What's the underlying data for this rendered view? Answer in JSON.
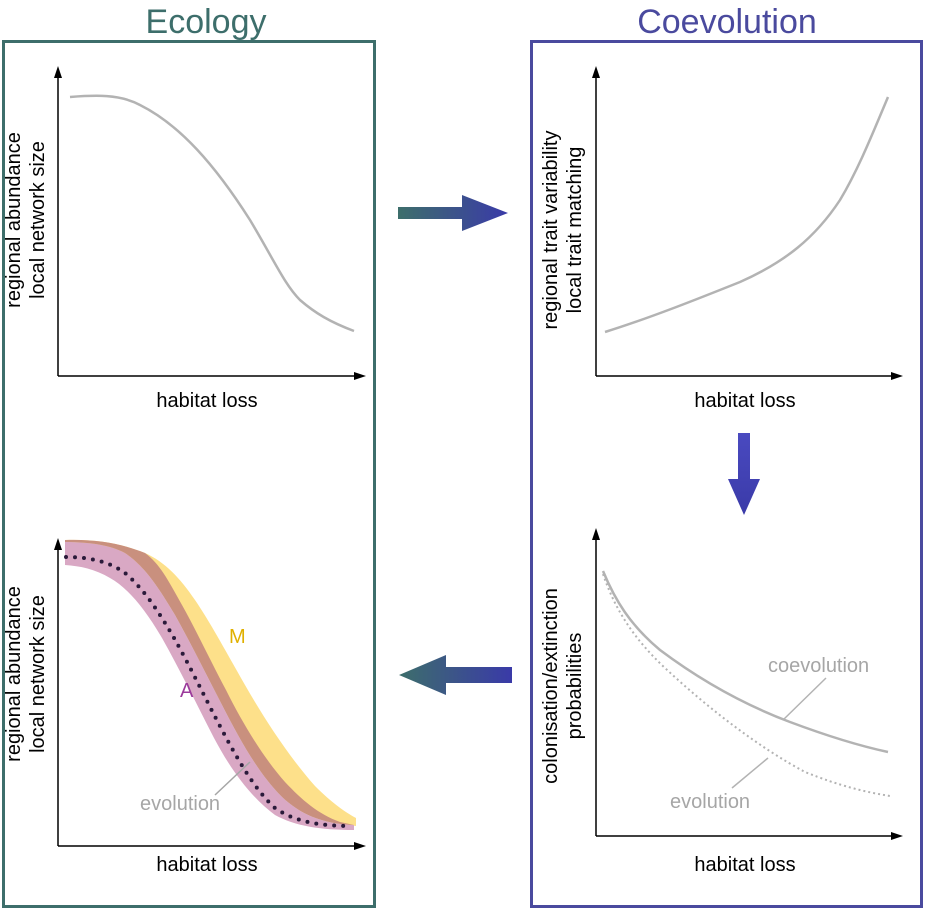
{
  "titles": {
    "ecology": "Ecology",
    "coevolution": "Coevolution"
  },
  "panels": {
    "top_left": {
      "y_label_1": "regional abundance",
      "y_label_2": "local network size",
      "x_label": "habitat loss"
    },
    "top_right": {
      "y_label_1": "regional trait variability",
      "y_label_2": "local trait matching",
      "x_label": "habitat loss"
    },
    "bottom_right": {
      "y_label_1": "colonisation/extinction",
      "y_label_2": "probabilities",
      "x_label": "habitat loss",
      "coevolution_label": "coevolution",
      "evolution_label": "evolution"
    },
    "bottom_left": {
      "y_label_1": "regional abundance",
      "y_label_2": "local network size",
      "x_label": "habitat loss",
      "m_label": "M",
      "a_label": "A",
      "evolution_label": "evolution"
    }
  },
  "colors": {
    "ecology": "#3d6e6b",
    "coevolution": "#4a4a9e",
    "curve": "#b3b3b3",
    "m_band": "#fde08a",
    "a_band": "#d9a8c4",
    "overlap": "#c9907e",
    "dots": "#2a1a3a"
  }
}
